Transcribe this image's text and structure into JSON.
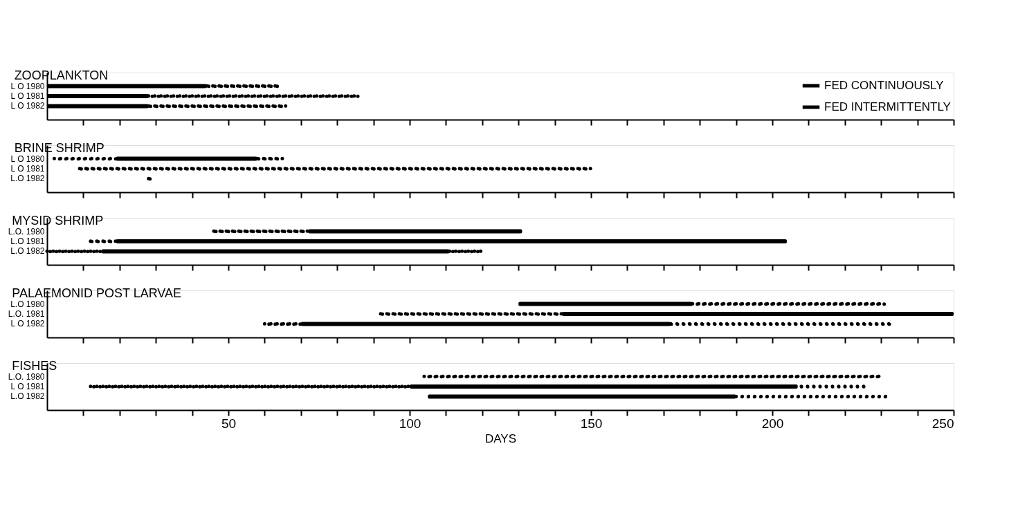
{
  "chart_data": [
    {
      "type": "bar",
      "orientation": "horizontal",
      "title": "ZOOPLANKTON",
      "categories": [
        "L O 1980",
        "L O 1981",
        "L O 1982"
      ],
      "xlim": [
        0,
        250
      ],
      "xticks": [
        {
          "value": 10,
          "label": null
        },
        {
          "value": 20,
          "label": null
        },
        {
          "value": 30,
          "label": null
        },
        {
          "value": 40,
          "label": null
        },
        50,
        {
          "value": 60,
          "label": null
        },
        {
          "value": 70,
          "label": null
        },
        {
          "value": 80,
          "label": null
        },
        {
          "value": 90,
          "label": null
        },
        100,
        {
          "value": 110,
          "label": null
        },
        {
          "value": 120,
          "label": null
        },
        {
          "value": 130,
          "label": null
        },
        {
          "value": 140,
          "label": null
        },
        150,
        {
          "value": 160,
          "label": null
        },
        {
          "value": 170,
          "label": null
        },
        {
          "value": 180,
          "label": null
        },
        {
          "value": 190,
          "label": null
        },
        200,
        {
          "value": 210,
          "label": null
        },
        {
          "value": 220,
          "label": null
        },
        {
          "value": 230,
          "label": null
        },
        {
          "value": 240,
          "label": null
        },
        250
      ],
      "tick_labels": "y",
      "grid": false,
      "legend": "top right",
      "series": [
        {
          "name": "FED CONTINUOUSLY",
          "color": "#000000",
          "line_style": "solid",
          "base": [
            0,
            0,
            0
          ],
          "values": [
            44,
            28,
            28
          ]
        },
        {
          "name": "FED INTERMITTENTLY",
          "color": "#000000",
          "line_style": "dotted",
          "base": [
            44,
            28,
            28
          ],
          "values": [
            20,
            58,
            38
          ]
        }
      ]
    },
    {
      "type": "bar",
      "orientation": "horizontal",
      "title": "BRINE SHRIMP",
      "categories": [
        "L O 1980",
        "L O 1981",
        "L.O 1982"
      ],
      "xlim": [
        0,
        250
      ],
      "xticks": [
        {
          "value": 10,
          "label": null
        },
        {
          "value": 20,
          "label": null
        },
        {
          "value": 30,
          "label": null
        },
        {
          "value": 40,
          "label": null
        },
        {
          "value": 50,
          "label": null
        },
        {
          "value": 60,
          "label": null
        },
        {
          "value": 70,
          "label": null
        },
        {
          "value": 80,
          "label": null
        },
        {
          "value": 90,
          "label": null
        },
        {
          "value": 100,
          "label": null
        },
        {
          "value": 110,
          "label": null
        },
        {
          "value": 120,
          "label": null
        },
        {
          "value": 130,
          "label": null
        },
        {
          "value": 140,
          "label": null
        },
        {
          "value": 150,
          "label": null
        },
        {
          "value": 160,
          "label": null
        },
        {
          "value": 170,
          "label": null
        },
        {
          "value": 180,
          "label": null
        },
        {
          "value": 190,
          "label": null
        },
        {
          "value": 200,
          "label": null
        },
        {
          "value": 210,
          "label": null
        },
        {
          "value": 220,
          "label": null
        },
        {
          "value": 230,
          "label": null
        },
        {
          "value": 240,
          "label": null
        },
        {
          "value": 250,
          "label": null
        }
      ],
      "tick_labels": "y",
      "grid": false,
      "series": [
        {
          "color": "#000000",
          "line_style": "dotted",
          "base": [
            2,
            9,
            28
          ],
          "values": [
            17,
            141,
            1
          ]
        },
        {
          "color": "#000000",
          "line_style": "solid",
          "base": [
            19,
            null,
            null
          ],
          "values": [
            39,
            null,
            null
          ]
        },
        {
          "color": "#000000",
          "line_style": "dotted",
          "base": [
            58,
            null,
            null
          ],
          "values": [
            7,
            null,
            null
          ]
        }
      ]
    },
    {
      "type": "bar",
      "orientation": "horizontal",
      "title": "MYSID SHRIMP",
      "categories": [
        "L.O. 1980",
        "L.O 1981",
        "L.O 1982"
      ],
      "xlim": [
        0,
        250
      ],
      "xticks": [
        {
          "value": 10,
          "label": null
        },
        {
          "value": 20,
          "label": null
        },
        {
          "value": 30,
          "label": null
        },
        {
          "value": 40,
          "label": null
        },
        {
          "value": 50,
          "label": null
        },
        {
          "value": 60,
          "label": null
        },
        {
          "value": 70,
          "label": null
        },
        {
          "value": 80,
          "label": null
        },
        {
          "value": 90,
          "label": null
        },
        {
          "value": 100,
          "label": null
        },
        {
          "value": 110,
          "label": null
        },
        {
          "value": 120,
          "label": null
        },
        {
          "value": 130,
          "label": null
        },
        {
          "value": 140,
          "label": null
        },
        {
          "value": 150,
          "label": null
        },
        {
          "value": 160,
          "label": null
        },
        {
          "value": 170,
          "label": null
        },
        {
          "value": 180,
          "label": null
        },
        {
          "value": 190,
          "label": null
        },
        {
          "value": 200,
          "label": null
        },
        {
          "value": 210,
          "label": null
        },
        {
          "value": 220,
          "label": null
        },
        {
          "value": 230,
          "label": null
        },
        {
          "value": 240,
          "label": null
        },
        {
          "value": 250,
          "label": null
        }
      ],
      "tick_labels": "y",
      "grid": false,
      "series": [
        {
          "color": "#000000",
          "line_style": "dotted",
          "base": [
            46,
            12,
            0
          ],
          "values": [
            26,
            7,
            15
          ]
        },
        {
          "color": "#000000",
          "line_style": "solid",
          "base": [
            72,
            19,
            15
          ],
          "values": [
            59,
            185,
            96
          ]
        },
        {
          "color": "#000000",
          "line_style": "dotted",
          "base": [
            null,
            null,
            111
          ],
          "values": [
            null,
            null,
            9
          ]
        }
      ]
    },
    {
      "type": "bar",
      "orientation": "horizontal",
      "title": "PALAEMONID POST LARVAE",
      "categories": [
        "L.O 1980",
        "L.O. 1981",
        "L O 1982"
      ],
      "xlim": [
        0,
        250
      ],
      "xticks": [
        {
          "value": 10,
          "label": null
        },
        {
          "value": 20,
          "label": null
        },
        {
          "value": 30,
          "label": null
        },
        {
          "value": 40,
          "label": null
        },
        {
          "value": 50,
          "label": null
        },
        {
          "value": 60,
          "label": null
        },
        {
          "value": 70,
          "label": null
        },
        {
          "value": 80,
          "label": null
        },
        {
          "value": 90,
          "label": null
        },
        {
          "value": 100,
          "label": null
        },
        {
          "value": 110,
          "label": null
        },
        {
          "value": 120,
          "label": null
        },
        {
          "value": 130,
          "label": null
        },
        {
          "value": 140,
          "label": null
        },
        {
          "value": 150,
          "label": null
        },
        {
          "value": 160,
          "label": null
        },
        {
          "value": 170,
          "label": null
        },
        {
          "value": 180,
          "label": null
        },
        {
          "value": 190,
          "label": null
        },
        {
          "value": 200,
          "label": null
        },
        {
          "value": 210,
          "label": null
        },
        {
          "value": 220,
          "label": null
        },
        {
          "value": 230,
          "label": null
        },
        {
          "value": 240,
          "label": null
        },
        {
          "value": 250,
          "label": null
        }
      ],
      "tick_labels": "y",
      "grid": false,
      "series": [
        {
          "color": "#000000",
          "line_style": "dotted",
          "base": [
            null,
            92,
            60
          ],
          "values": [
            null,
            50,
            10
          ]
        },
        {
          "color": "#000000",
          "line_style": "solid",
          "base": [
            130,
            142,
            70
          ],
          "values": [
            48,
            108,
            102
          ]
        },
        {
          "color": "#000000",
          "line_style": "dotted",
          "base": [
            178,
            null,
            172
          ],
          "values": [
            53,
            null,
            61
          ]
        }
      ]
    },
    {
      "type": "bar",
      "orientation": "horizontal",
      "title": "FISHES",
      "categories": [
        "L.O. 1980",
        "L O 1981",
        "L.O 1982"
      ],
      "xlim": [
        0,
        250
      ],
      "xticks": [
        {
          "value": 10,
          "label": null
        },
        {
          "value": 20,
          "label": null
        },
        {
          "value": 30,
          "label": null
        },
        {
          "value": 40,
          "label": null
        },
        50,
        {
          "value": 60,
          "label": null
        },
        {
          "value": 70,
          "label": null
        },
        {
          "value": 80,
          "label": null
        },
        {
          "value": 90,
          "label": null
        },
        100,
        {
          "value": 110,
          "label": null
        },
        {
          "value": 120,
          "label": null
        },
        {
          "value": 130,
          "label": null
        },
        {
          "value": 140,
          "label": null
        },
        150,
        {
          "value": 160,
          "label": null
        },
        {
          "value": 170,
          "label": null
        },
        {
          "value": 180,
          "label": null
        },
        {
          "value": 190,
          "label": null
        },
        200,
        {
          "value": 210,
          "label": null
        },
        {
          "value": 220,
          "label": null
        },
        {
          "value": 230,
          "label": null
        },
        {
          "value": 240,
          "label": null
        },
        250
      ],
      "xlabel": "DAYS",
      "grid": false,
      "series": [
        {
          "color": "#000000",
          "line_style": "dotted",
          "base": [
            104,
            12,
            null
          ],
          "values": [
            126,
            88,
            null
          ]
        },
        {
          "color": "#000000",
          "line_style": "solid",
          "base": [
            null,
            100,
            105
          ],
          "values": [
            null,
            107,
            85
          ]
        },
        {
          "color": "#000000",
          "line_style": "dotted",
          "base": [
            null,
            208,
            190
          ],
          "values": [
            null,
            18,
            42
          ]
        }
      ]
    }
  ]
}
